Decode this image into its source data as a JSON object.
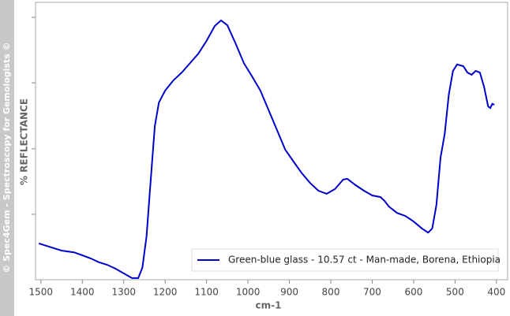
{
  "chart_data": {
    "type": "line",
    "watermark": "© Spec4Gem - Spectroscopy for Gemologists ©",
    "y_label": "%  REFLECTANCE",
    "x_label": "cm-1",
    "xlim": [
      1513,
      373
    ],
    "xticks": [
      1500,
      1400,
      1300,
      1200,
      1100,
      1000,
      900,
      800,
      700,
      600,
      500,
      400
    ],
    "ylim": [
      0,
      100
    ],
    "yticks": [
      23.6,
      47.2,
      71,
      94.6
    ],
    "series": [
      {
        "name": "Green-blue glass - 10.57 ct - Man-made, Borena, Ethiopia",
        "color": "#0000cc",
        "x": [
          1505,
          1480,
          1450,
          1420,
          1400,
          1380,
          1360,
          1340,
          1320,
          1300,
          1280,
          1265,
          1255,
          1245,
          1235,
          1225,
          1215,
          1200,
          1180,
          1160,
          1140,
          1120,
          1100,
          1080,
          1065,
          1050,
          1030,
          1010,
          990,
          970,
          950,
          930,
          910,
          890,
          870,
          850,
          830,
          810,
          790,
          770,
          760,
          740,
          720,
          700,
          680,
          670,
          660,
          640,
          620,
          600,
          580,
          565,
          555,
          545,
          535,
          525,
          515,
          505,
          495,
          480,
          470,
          460,
          450,
          440,
          430,
          420,
          415,
          410,
          405
        ],
        "values": [
          13.1,
          11.9,
          10.5,
          9.9,
          8.8,
          7.7,
          6.3,
          5.4,
          4.0,
          2.3,
          0.6,
          0.6,
          4.3,
          15.6,
          35.5,
          55.4,
          63.9,
          68.2,
          71.9,
          74.7,
          78.1,
          81.5,
          86.1,
          91.5,
          93.5,
          91.8,
          85.2,
          78.1,
          73.3,
          68.2,
          61.1,
          54.0,
          46.9,
          42.6,
          38.4,
          34.9,
          32.1,
          31.0,
          32.7,
          36.1,
          36.4,
          34.1,
          32.1,
          30.4,
          29.8,
          28.4,
          26.4,
          24.1,
          23.0,
          21.0,
          18.5,
          17.0,
          18.5,
          27.0,
          44.0,
          52.6,
          66.8,
          75.3,
          77.6,
          77.0,
          74.7,
          73.9,
          75.3,
          74.7,
          69.6,
          62.5,
          61.9,
          63.4,
          63.1
        ]
      }
    ]
  }
}
